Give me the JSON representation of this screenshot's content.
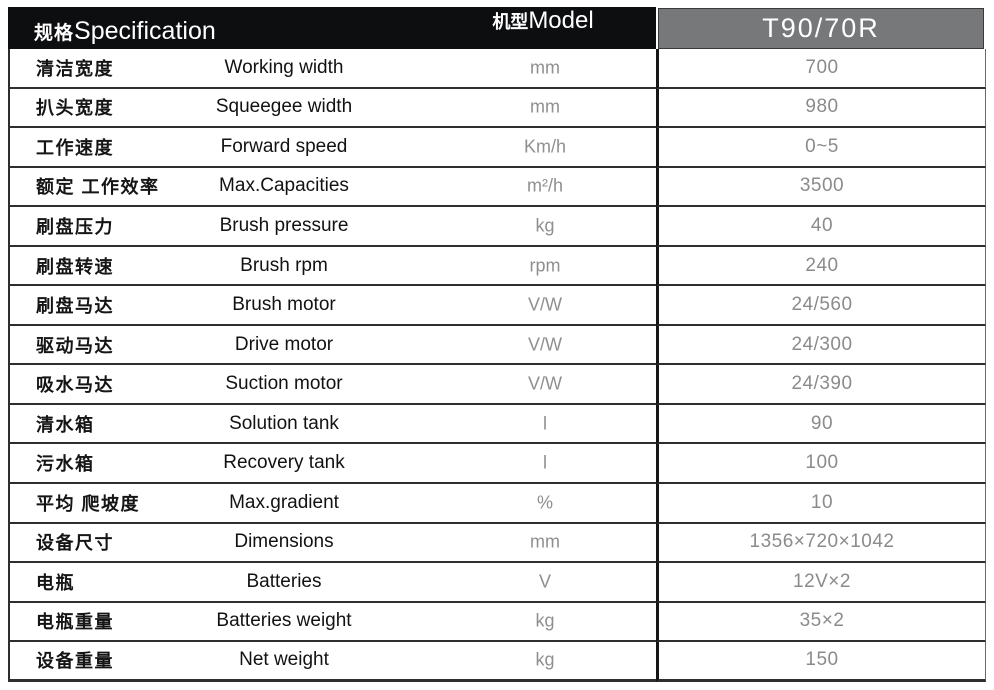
{
  "table": {
    "title_cn": "规格",
    "title_en": "Specification",
    "model_cn": "机型",
    "model_en": "Model",
    "model_value": "T90/70R",
    "rows": [
      {
        "cn": "清洁宽度",
        "en": "Working width",
        "unit": "mm",
        "value": "700"
      },
      {
        "cn": "扒头宽度",
        "en": "Squeegee width",
        "unit": "mm",
        "value": "980"
      },
      {
        "cn": "工作速度",
        "en": "Forward speed",
        "unit": "Km/h",
        "value": "0~5"
      },
      {
        "cn": "额定 工作效率",
        "en": "Max.Capacities",
        "unit": "m²/h",
        "value": "3500"
      },
      {
        "cn": "刷盘压力",
        "en": "Brush pressure",
        "unit": "kg",
        "value": "40"
      },
      {
        "cn": "刷盘转速",
        "en": "Brush rpm",
        "unit": "rpm",
        "value": "240"
      },
      {
        "cn": "刷盘马达",
        "en": "Brush motor",
        "unit": "V/W",
        "value": "24/560"
      },
      {
        "cn": "驱动马达",
        "en": "Drive motor",
        "unit": "V/W",
        "value": "24/300"
      },
      {
        "cn": "吸水马达",
        "en": "Suction motor",
        "unit": "V/W",
        "value": "24/390"
      },
      {
        "cn": "清水箱",
        "en": "Solution tank",
        "unit": "l",
        "value": "90"
      },
      {
        "cn": "污水箱",
        "en": "Recovery tank",
        "unit": "l",
        "value": "100"
      },
      {
        "cn": "平均 爬坡度",
        "en": "Max.gradient",
        "unit": "%",
        "value": "10"
      },
      {
        "cn": "设备尺寸",
        "en": "Dimensions",
        "unit": "mm",
        "value": "1356×720×1042"
      },
      {
        "cn": "电瓶",
        "en": "Batteries",
        "unit": "V",
        "value": "12V×2"
      },
      {
        "cn": "电瓶重量",
        "en": "Batteries weight",
        "unit": "kg",
        "value": "35×2"
      },
      {
        "cn": "设备重量",
        "en": "Net weight",
        "unit": "kg",
        "value": "150"
      }
    ]
  },
  "colors": {
    "header_bg": "#0d0e10",
    "model_bg": "#77787a",
    "border": "#2e2e2e",
    "label_text": "#151515",
    "unit_text": "#8e8f91",
    "value_text": "#8a8b8d"
  }
}
